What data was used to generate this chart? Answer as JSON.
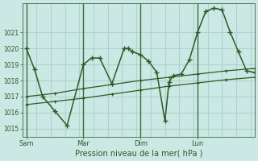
{
  "background_color": "#cce8e4",
  "grid_color": "#aad4ce",
  "line_color": "#2d5a27",
  "vline_color": "#3a6b3a",
  "xlabel": "Pression niveau de la mer( hPa )",
  "ylim": [
    1014.5,
    1022.8
  ],
  "yticks": [
    1015,
    1016,
    1017,
    1018,
    1019,
    1020,
    1021
  ],
  "xtick_labels": [
    "Sam",
    "Mar",
    "Dim",
    "Lun"
  ],
  "xtick_positions": [
    0,
    28,
    56,
    84
  ],
  "vline_positions": [
    0,
    28,
    56,
    84
  ],
  "xlim": [
    -2,
    112
  ],
  "line1_x": [
    0,
    4,
    8,
    14,
    20,
    28,
    32,
    36,
    42,
    48,
    50,
    52,
    56,
    60,
    64,
    68,
    70,
    72,
    76,
    80,
    84,
    88,
    92,
    96,
    100,
    104,
    108,
    112
  ],
  "line1_y": [
    1020.0,
    1018.7,
    1017.0,
    1016.1,
    1015.2,
    1019.0,
    1019.4,
    1019.4,
    1017.8,
    1020.0,
    1020.0,
    1019.8,
    1019.6,
    1019.2,
    1018.5,
    1015.5,
    1017.9,
    1018.3,
    1018.4,
    1019.3,
    1021.0,
    1022.3,
    1022.5,
    1022.4,
    1021.0,
    1019.8,
    1018.6,
    1018.5
  ],
  "line2_x": [
    0,
    14,
    28,
    42,
    56,
    70,
    84,
    98,
    112
  ],
  "line2_y": [
    1017.0,
    1017.2,
    1017.5,
    1017.75,
    1018.0,
    1018.2,
    1018.4,
    1018.6,
    1018.75
  ],
  "line3_x": [
    0,
    14,
    28,
    42,
    56,
    70,
    84,
    98,
    112
  ],
  "line3_y": [
    1016.5,
    1016.7,
    1016.9,
    1017.15,
    1017.4,
    1017.65,
    1017.85,
    1018.05,
    1018.2
  ]
}
